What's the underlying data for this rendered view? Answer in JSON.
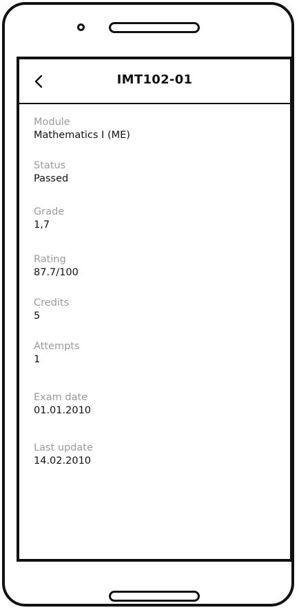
{
  "header": {
    "title": "IMT102-01",
    "back_icon": "chevron-left-icon"
  },
  "fields": [
    {
      "label": "Module",
      "value": "Mathematics I (ME)"
    },
    {
      "label": "Status",
      "value": "Passed"
    },
    {
      "label": "Grade",
      "value": "1,7"
    },
    {
      "label": "Rating",
      "value": "87.7/100"
    },
    {
      "label": "Credits",
      "value": "5"
    },
    {
      "label": "Attempts",
      "value": "1"
    },
    {
      "label": "Exam date",
      "value": "01.01.2010"
    },
    {
      "label": "Last update",
      "value": "14.02.2010"
    }
  ]
}
